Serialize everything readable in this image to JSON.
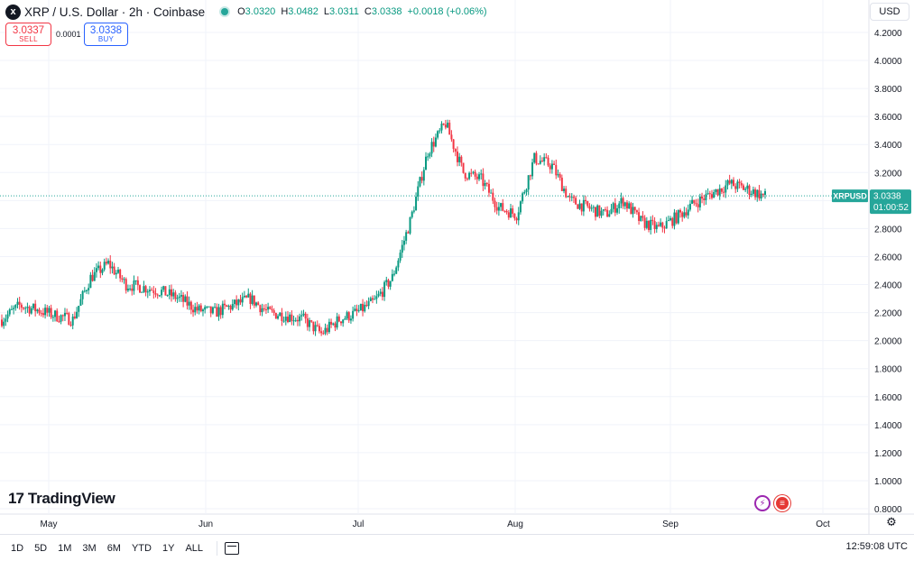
{
  "header": {
    "symbol_icon": "x",
    "title": "XRP / U.S. Dollar · 2h · Coinbase",
    "ohlc": {
      "o_label": "O",
      "o": "3.0320",
      "h_label": "H",
      "h": "3.0482",
      "l_label": "L",
      "l": "3.0311",
      "c_label": "C",
      "c": "3.0338",
      "change": "+0.0018 (+0.06%)"
    }
  },
  "trade": {
    "sell_price": "3.0337",
    "sell_label": "SELL",
    "spread": "0.0001",
    "buy_price": "3.0338",
    "buy_label": "BUY"
  },
  "currency": "USD",
  "brand": {
    "mark": "17",
    "name": "TradingView"
  },
  "price_axis": {
    "ticks": [
      "4.2000",
      "4.0000",
      "3.8000",
      "3.6000",
      "3.4000",
      "3.2000",
      "3.0000",
      "2.8000",
      "2.6000",
      "2.4000",
      "2.2000",
      "2.0000",
      "1.8000",
      "1.6000",
      "1.4000",
      "1.2000",
      "1.0000",
      "0.8000"
    ],
    "last_price_label": "XRPUSD",
    "last_price": "3.0338",
    "countdown": "01:00:52"
  },
  "time_axis": {
    "labels": [
      "May",
      "Jun",
      "Jul",
      "Aug",
      "Sep",
      "Oct"
    ]
  },
  "range_buttons": [
    "1D",
    "5D",
    "1M",
    "3M",
    "6M",
    "YTD",
    "1Y",
    "ALL"
  ],
  "clock": "12:59:08 UTC",
  "colors": {
    "up": "#089981",
    "down": "#f23645",
    "last_price": "#26a69a",
    "grid": "#f0f3fa"
  },
  "icons": {
    "settings": "gear-icon",
    "calendar": "calendar-icon",
    "symbol": "xrp-logo-icon"
  },
  "chart_data": {
    "type": "candlestick",
    "interval": "2h",
    "ylim": [
      0.8,
      4.2
    ],
    "last_value": 3.0338,
    "x": [
      "Apr 24",
      "Apr 28",
      "May 1",
      "May 5",
      "May 8",
      "May 12",
      "May 15",
      "May 19",
      "May 22",
      "May 26",
      "May 29",
      "Jun 2",
      "Jun 5",
      "Jun 9",
      "Jun 12",
      "Jun 16",
      "Jun 19",
      "Jun 23",
      "Jun 26",
      "Jun 30",
      "Jul 3",
      "Jul 7",
      "Jul 10",
      "Jul 14",
      "Jul 17",
      "Jul 21",
      "Jul 24",
      "Jul 28",
      "Jul 31",
      "Aug 4",
      "Aug 7",
      "Aug 11",
      "Aug 14",
      "Aug 18",
      "Aug 21",
      "Aug 25",
      "Aug 28",
      "Sep 1",
      "Sep 4",
      "Sep 8",
      "Sep 11",
      "Sep 15",
      "Sep 18",
      "Sep 21"
    ],
    "close": [
      2.15,
      2.25,
      2.22,
      2.18,
      2.15,
      2.45,
      2.55,
      2.4,
      2.38,
      2.35,
      2.3,
      2.22,
      2.2,
      2.25,
      2.3,
      2.2,
      2.18,
      2.15,
      2.05,
      2.15,
      2.2,
      2.28,
      2.45,
      2.85,
      3.35,
      3.55,
      3.2,
      3.15,
      2.95,
      2.9,
      3.3,
      3.25,
      3.0,
      2.95,
      2.9,
      3.0,
      2.85,
      2.8,
      2.88,
      2.98,
      3.05,
      3.12,
      3.08,
      3.03
    ]
  }
}
